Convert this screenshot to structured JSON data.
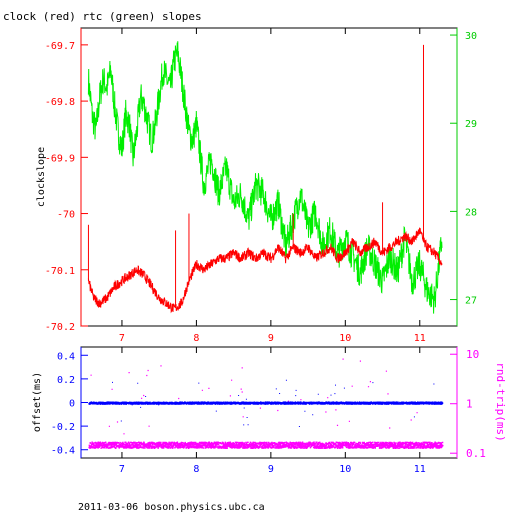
{
  "title": "clock (red) rtc (green) slopes",
  "footer": "2011-03-06 boson.physics.ubc.ca",
  "colors": {
    "red": "#ff0000",
    "green": "#00ee00",
    "blue": "#0000ff",
    "magenta": "#ff00ff",
    "black": "#000000"
  },
  "chart_data": [
    {
      "type": "line",
      "xlim": [
        6.45,
        11.5
      ],
      "x_ticks": [
        "7",
        "8",
        "9",
        "10",
        "11"
      ],
      "y_left": {
        "label": "clockslope",
        "lim": [
          -70.2,
          -69.67
        ],
        "ticks": [
          "-69.7",
          "-69.8",
          "-69.9",
          "-70",
          "-70.1",
          "-70.2"
        ]
      },
      "y_right": {
        "lim": [
          26.7,
          30.08
        ],
        "ticks": [
          "30",
          "29",
          "28",
          "27"
        ]
      },
      "series": [
        {
          "color": "#ff0000",
          "axis": "left",
          "x": [
            6.55,
            6.62,
            6.7,
            6.8,
            6.9,
            7.0,
            7.1,
            7.2,
            7.3,
            7.4,
            7.5,
            7.6,
            7.7,
            7.8,
            7.9,
            8.0,
            8.1,
            8.2,
            8.3,
            8.4,
            8.5,
            8.6,
            8.7,
            8.8,
            8.9,
            9.0,
            9.1,
            9.2,
            9.3,
            9.4,
            9.5,
            9.6,
            9.7,
            9.8,
            9.9,
            10.0,
            10.1,
            10.2,
            10.3,
            10.4,
            10.5,
            10.6,
            10.7,
            10.8,
            10.9,
            11.0,
            11.05,
            11.1,
            11.2,
            11.3
          ],
          "y": [
            -70.12,
            -70.15,
            -70.16,
            -70.15,
            -70.13,
            -70.12,
            -70.11,
            -70.1,
            -70.11,
            -70.13,
            -70.15,
            -70.16,
            -70.17,
            -70.16,
            -70.12,
            -70.09,
            -70.1,
            -70.09,
            -70.08,
            -70.08,
            -70.07,
            -70.08,
            -70.07,
            -70.08,
            -70.07,
            -70.08,
            -70.06,
            -70.08,
            -70.06,
            -70.07,
            -70.06,
            -70.08,
            -70.07,
            -70.06,
            -70.08,
            -70.07,
            -70.05,
            -70.07,
            -70.06,
            -70.05,
            -70.07,
            -70.06,
            -70.05,
            -70.04,
            -70.05,
            -70.03,
            -70.05,
            -70.06,
            -70.07,
            -70.09
          ]
        },
        {
          "color": "#00ee00",
          "axis": "right",
          "x": [
            6.55,
            6.6,
            6.65,
            6.7,
            6.75,
            6.8,
            6.85,
            6.9,
            6.95,
            7.0,
            7.05,
            7.1,
            7.15,
            7.2,
            7.25,
            7.3,
            7.35,
            7.4,
            7.45,
            7.5,
            7.55,
            7.6,
            7.65,
            7.7,
            7.75,
            7.8,
            7.85,
            7.9,
            7.95,
            8.0,
            8.1,
            8.2,
            8.3,
            8.4,
            8.5,
            8.6,
            8.7,
            8.8,
            8.9,
            9.0,
            9.1,
            9.2,
            9.3,
            9.4,
            9.5,
            9.6,
            9.7,
            9.8,
            9.9,
            10.0,
            10.1,
            10.2,
            10.3,
            10.4,
            10.5,
            10.6,
            10.7,
            10.8,
            10.9,
            11.0,
            11.1,
            11.2,
            11.3
          ],
          "y": [
            29.5,
            29.1,
            28.9,
            29.3,
            29.5,
            29.4,
            29.6,
            29.2,
            28.9,
            28.7,
            29.1,
            29.0,
            28.6,
            28.9,
            29.3,
            29.2,
            29.0,
            28.8,
            29.0,
            29.3,
            29.6,
            29.5,
            29.4,
            29.7,
            29.8,
            29.5,
            29.2,
            28.9,
            28.8,
            29.0,
            28.3,
            28.6,
            28.2,
            28.5,
            28.1,
            28.2,
            27.9,
            28.3,
            28.2,
            27.9,
            28.1,
            27.6,
            27.9,
            28.2,
            27.8,
            28.0,
            27.6,
            27.8,
            27.5,
            27.7,
            27.5,
            27.3,
            27.6,
            27.4,
            27.2,
            27.5,
            27.3,
            27.7,
            27.2,
            27.4,
            27.1,
            27.0,
            27.7
          ]
        }
      ]
    },
    {
      "type": "scatter",
      "xlim": [
        6.45,
        11.5
      ],
      "x_ticks": [
        "7",
        "8",
        "9",
        "10",
        "11"
      ],
      "y_left": {
        "label": "offset(ms)",
        "lim": [
          -0.47,
          0.47
        ],
        "ticks": [
          "0.4",
          "0.2",
          "0",
          "-0.2",
          "-0.4"
        ]
      },
      "y_right": {
        "label": "rnd-trip(ms)",
        "scale": "log",
        "lim": [
          0.08,
          14
        ],
        "ticks": [
          "10",
          "1",
          "0.1"
        ]
      },
      "series": [
        {
          "color": "#0000ff",
          "axis": "left",
          "x_range": [
            6.55,
            11.3
          ],
          "y": 0.0
        },
        {
          "color": "#ff00ff",
          "axis": "right",
          "x_range": [
            6.55,
            11.3
          ],
          "y": 0.15
        }
      ]
    }
  ]
}
